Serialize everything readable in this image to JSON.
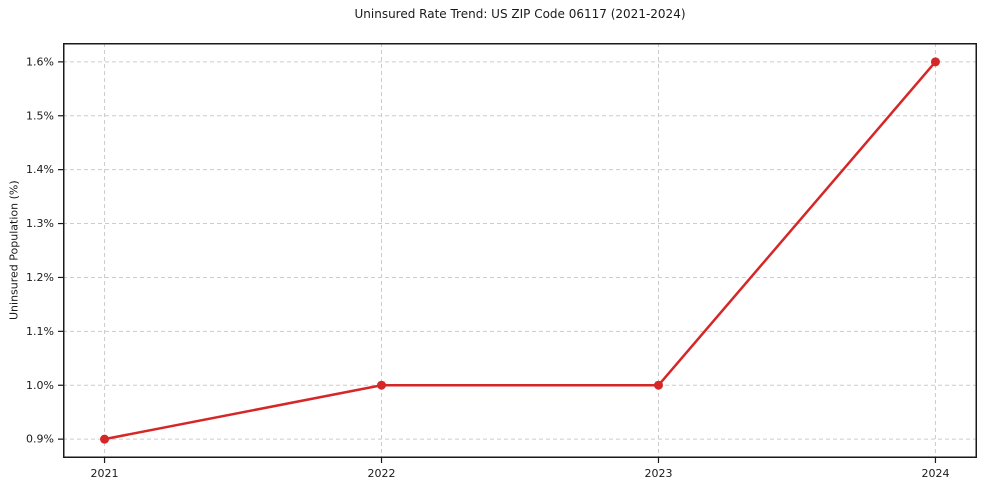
{
  "chart_data": {
    "type": "line",
    "title": "Uninsured Rate Trend: US ZIP Code 06117 (2021-2024)",
    "xlabel": "",
    "ylabel": "Uninsured Population (%)",
    "x": [
      2021,
      2022,
      2023,
      2024
    ],
    "values": [
      0.9,
      1.0,
      1.0,
      1.6
    ],
    "xticks": {
      "values": [
        2021,
        2022,
        2023,
        2024
      ],
      "labels": [
        "2021",
        "2022",
        "2023",
        "2024"
      ]
    },
    "yticks": {
      "values": [
        0.9,
        1.0,
        1.1,
        1.2,
        1.3,
        1.4,
        1.5,
        1.6
      ],
      "labels": [
        "0.9%",
        "1.0%",
        "1.1%",
        "1.2%",
        "1.3%",
        "1.4%",
        "1.5%",
        "1.6%"
      ]
    },
    "xlim": [
      2020.85,
      2024.15
    ],
    "ylim": [
      0.865,
      1.635
    ],
    "grid": true,
    "legend": false,
    "line_color": "#d62728",
    "marker": "circle",
    "marker_color": "#d62728",
    "grid_color": "#cccccc",
    "spine_color": "#1a1a1a",
    "background_color": "#ffffff"
  }
}
